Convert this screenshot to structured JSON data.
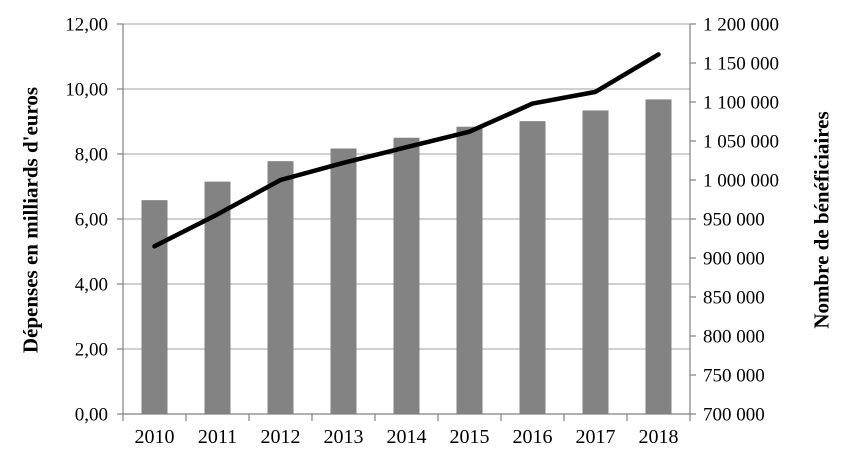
{
  "chart_data": {
    "type": "combo-bar-line",
    "title": "",
    "categories": [
      "2010",
      "2011",
      "2012",
      "2013",
      "2014",
      "2015",
      "2016",
      "2017",
      "2018"
    ],
    "series": [
      {
        "name": "Dépenses en milliards d'euros",
        "type": "bar",
        "axis": "left",
        "values": [
          6.58,
          7.15,
          7.78,
          8.17,
          8.5,
          8.84,
          9.01,
          9.34,
          9.68
        ]
      },
      {
        "name": "Nombre de bénéficiaires",
        "type": "line",
        "axis": "right",
        "values": [
          915000,
          956000,
          1000000,
          1022000,
          1042000,
          1062000,
          1098000,
          1113000,
          1161000
        ]
      }
    ],
    "left_axis": {
      "label": "Dépenses en milliards d'euros",
      "min": 0,
      "max": 12,
      "step": 2,
      "tick_labels": [
        "0,00",
        "2,00",
        "4,00",
        "6,00",
        "8,00",
        "10,00",
        "12,00"
      ]
    },
    "right_axis": {
      "label": "Nombre de bénéficiaires",
      "min": 700000,
      "max": 1200000,
      "step": 50000,
      "tick_labels": [
        "700 000",
        "750 000",
        "800 000",
        "850 000",
        "900 000",
        "950 000",
        "1 000 000",
        "1 050 000",
        "1 100 000",
        "1 150 000",
        "1 200 000"
      ]
    },
    "x_axis": {
      "tick_labels": [
        "2010",
        "2011",
        "2012",
        "2013",
        "2014",
        "2015",
        "2016",
        "2017",
        "2018"
      ]
    },
    "grid": true,
    "legend": false,
    "colors": {
      "bar": "#838383",
      "line": "#000000",
      "gridline": "#a0a0a0",
      "axis": "#808080",
      "text": "#000000",
      "background": "#ffffff"
    }
  }
}
